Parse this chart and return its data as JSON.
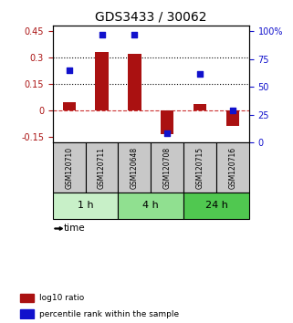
{
  "title": "GDS3433 / 30062",
  "samples": [
    "GSM120710",
    "GSM120711",
    "GSM120648",
    "GSM120708",
    "GSM120715",
    "GSM120716"
  ],
  "groups": [
    {
      "label": "1 h",
      "color": "#c8f0c8",
      "indices": [
        0,
        1
      ]
    },
    {
      "label": "4 h",
      "color": "#90e090",
      "indices": [
        2,
        3
      ]
    },
    {
      "label": "24 h",
      "color": "#50c850",
      "indices": [
        4,
        5
      ]
    }
  ],
  "log10_ratio": [
    0.05,
    0.33,
    0.32,
    -0.13,
    0.04,
    -0.085
  ],
  "percentile_rank": [
    65,
    97,
    97,
    8,
    62,
    29
  ],
  "ylim_left": [
    -0.18,
    0.48
  ],
  "ylim_right": [
    0,
    105
  ],
  "yticks_left": [
    -0.15,
    0.0,
    0.15,
    0.3,
    0.45
  ],
  "yticks_right": [
    0,
    25,
    50,
    75,
    100
  ],
  "ytick_labels_left": [
    "-0.15",
    "0",
    "0.15",
    "0.3",
    "0.45"
  ],
  "ytick_labels_right": [
    "0",
    "25",
    "50",
    "75",
    "100%"
  ],
  "hlines": [
    0.15,
    0.3
  ],
  "bar_color": "#aa1111",
  "point_color": "#1111cc",
  "zero_line_color": "#cc3333",
  "bg_color": "#ffffff",
  "sample_bg_color": "#c8c8c8",
  "legend": [
    {
      "label": "log10 ratio",
      "color": "#aa1111"
    },
    {
      "label": "percentile rank within the sample",
      "color": "#1111cc"
    }
  ]
}
